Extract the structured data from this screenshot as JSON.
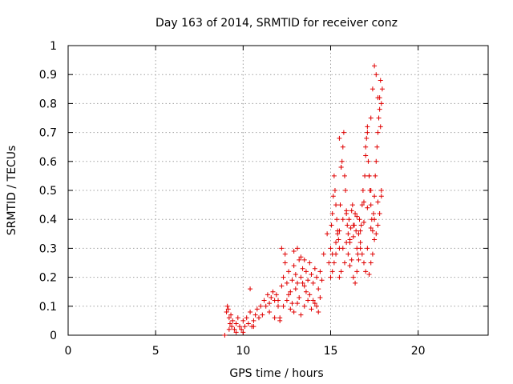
{
  "chart_data": {
    "type": "scatter",
    "title": "Day 163 of 2014, SRMTID for receiver conz",
    "xlabel": "GPS time / hours",
    "ylabel": "SRMTID / TECUs",
    "xlim": [
      0,
      24
    ],
    "ylim": [
      0,
      1
    ],
    "xticks": [
      0,
      5,
      10,
      15,
      20
    ],
    "xtick_labels": [
      "0",
      "5",
      "10",
      "15",
      "20"
    ],
    "yticks": [
      0,
      0.1,
      0.2,
      0.3,
      0.4,
      0.5,
      0.6,
      0.7,
      0.8,
      0.9,
      1
    ],
    "ytick_labels": [
      "0",
      "0.1",
      "0.2",
      "0.3",
      "0.4",
      "0.5",
      "0.6",
      "0.7",
      "0.8",
      "0.9",
      "1"
    ],
    "grid": true,
    "marker": "+",
    "color": "#e00000",
    "series": [
      {
        "name": "SRMTID",
        "x": [
          8.95,
          9.05,
          9.1,
          9.15,
          9.2,
          9.25,
          9.3,
          9.35,
          9.4,
          9.5,
          9.6,
          9.7,
          9.8,
          9.9,
          10.0,
          10.1,
          10.2,
          10.3,
          10.4,
          10.5,
          10.6,
          10.7,
          10.8,
          10.9,
          11.0,
          10.4,
          9.2,
          9.6,
          10.0,
          10.6,
          11.1,
          11.2,
          11.3,
          11.4,
          11.5,
          11.6,
          11.7,
          11.8,
          11.9,
          12.0,
          12.1,
          12.2,
          12.3,
          12.4,
          12.5,
          12.6,
          12.7,
          12.8,
          12.9,
          13.0,
          13.1,
          13.2,
          13.3,
          13.4,
          13.5,
          13.6,
          13.7,
          13.8,
          13.9,
          14.0,
          14.1,
          14.2,
          14.3,
          14.4,
          14.5,
          11.5,
          12.0,
          12.2,
          12.4,
          12.6,
          12.8,
          13.0,
          13.2,
          13.4,
          13.6,
          13.8,
          14.0,
          14.2,
          14.4,
          11.8,
          12.1,
          12.3,
          12.5,
          12.7,
          12.9,
          13.1,
          13.3,
          13.5,
          13.7,
          13.9,
          14.1,
          14.3,
          12.9,
          13.1,
          13.3,
          13.5,
          14.6,
          14.8,
          14.9,
          15.0,
          15.05,
          15.1,
          15.15,
          15.2,
          15.25,
          15.3,
          15.35,
          15.4,
          15.45,
          15.5,
          15.55,
          15.6,
          15.65,
          15.7,
          15.75,
          15.8,
          15.85,
          15.9,
          15.95,
          16.0,
          16.05,
          16.1,
          16.15,
          16.2,
          16.25,
          16.3,
          16.35,
          16.4,
          16.45,
          16.5,
          16.55,
          16.6,
          16.65,
          16.7,
          16.75,
          16.8,
          16.85,
          16.9,
          16.95,
          17.0,
          17.05,
          17.1,
          17.15,
          17.2,
          17.25,
          17.3,
          17.35,
          17.4,
          17.45,
          17.5,
          17.55,
          17.6,
          17.65,
          17.7,
          17.75,
          17.8,
          17.85,
          17.9,
          17.95,
          15.0,
          15.1,
          15.2,
          15.3,
          15.4,
          15.5,
          15.6,
          15.7,
          15.8,
          15.9,
          16.0,
          16.1,
          16.2,
          16.3,
          16.4,
          16.5,
          16.6,
          16.7,
          16.8,
          16.9,
          17.0,
          17.1,
          17.2,
          17.3,
          17.4,
          17.5,
          17.6,
          17.7,
          17.8,
          17.9,
          15.1,
          15.3,
          15.5,
          15.7,
          15.9,
          16.1,
          16.3,
          16.5,
          16.7,
          16.9,
          17.1,
          17.3,
          17.5,
          17.7,
          17.9,
          15.5,
          15.6,
          17.1,
          17.0,
          17.3,
          17.4,
          17.5,
          17.6,
          17.7,
          17.8,
          17.85,
          17.2,
          17.3
        ],
        "y": [
          0.0,
          0.08,
          0.1,
          0.09,
          0.06,
          0.04,
          0.07,
          0.03,
          0.05,
          0.02,
          0.04,
          0.06,
          0.03,
          0.02,
          0.05,
          0.03,
          0.06,
          0.04,
          0.08,
          0.03,
          0.05,
          0.07,
          0.09,
          0.06,
          0.1,
          0.16,
          0.02,
          0.01,
          0.01,
          0.03,
          0.07,
          0.12,
          0.1,
          0.14,
          0.11,
          0.13,
          0.15,
          0.12,
          0.14,
          0.1,
          0.06,
          0.17,
          0.2,
          0.25,
          0.18,
          0.22,
          0.15,
          0.19,
          0.24,
          0.21,
          0.18,
          0.26,
          0.2,
          0.23,
          0.17,
          0.22,
          0.19,
          0.25,
          0.21,
          0.18,
          0.23,
          0.2,
          0.16,
          0.22,
          0.19,
          0.08,
          0.12,
          0.3,
          0.28,
          0.14,
          0.11,
          0.16,
          0.13,
          0.18,
          0.15,
          0.14,
          0.12,
          0.1,
          0.13,
          0.06,
          0.05,
          0.1,
          0.12,
          0.09,
          0.08,
          0.11,
          0.07,
          0.1,
          0.12,
          0.09,
          0.11,
          0.08,
          0.29,
          0.3,
          0.27,
          0.26,
          0.28,
          0.35,
          0.25,
          0.3,
          0.38,
          0.42,
          0.48,
          0.55,
          0.5,
          0.45,
          0.4,
          0.36,
          0.33,
          0.3,
          0.45,
          0.58,
          0.6,
          0.65,
          0.7,
          0.55,
          0.5,
          0.42,
          0.38,
          0.35,
          0.4,
          0.32,
          0.37,
          0.43,
          0.45,
          0.34,
          0.38,
          0.42,
          0.36,
          0.3,
          0.28,
          0.35,
          0.4,
          0.32,
          0.38,
          0.45,
          0.5,
          0.46,
          0.55,
          0.62,
          0.68,
          0.72,
          0.6,
          0.55,
          0.5,
          0.45,
          0.4,
          0.36,
          0.42,
          0.48,
          0.55,
          0.6,
          0.65,
          0.7,
          0.75,
          0.82,
          0.88,
          0.8,
          0.85,
          0.2,
          0.22,
          0.25,
          0.28,
          0.35,
          0.2,
          0.22,
          0.3,
          0.25,
          0.32,
          0.28,
          0.24,
          0.26,
          0.2,
          0.18,
          0.22,
          0.26,
          0.3,
          0.28,
          0.25,
          0.22,
          0.3,
          0.21,
          0.25,
          0.28,
          0.33,
          0.35,
          0.38,
          0.42,
          0.48,
          0.28,
          0.32,
          0.36,
          0.4,
          0.43,
          0.33,
          0.38,
          0.41,
          0.36,
          0.39,
          0.44,
          0.37,
          0.4,
          0.46,
          0.5,
          0.68,
          0.58,
          0.7,
          0.65,
          0.75,
          0.85,
          0.93,
          0.9,
          0.82,
          0.78,
          0.72,
          0.55,
          0.5
        ]
      }
    ]
  }
}
